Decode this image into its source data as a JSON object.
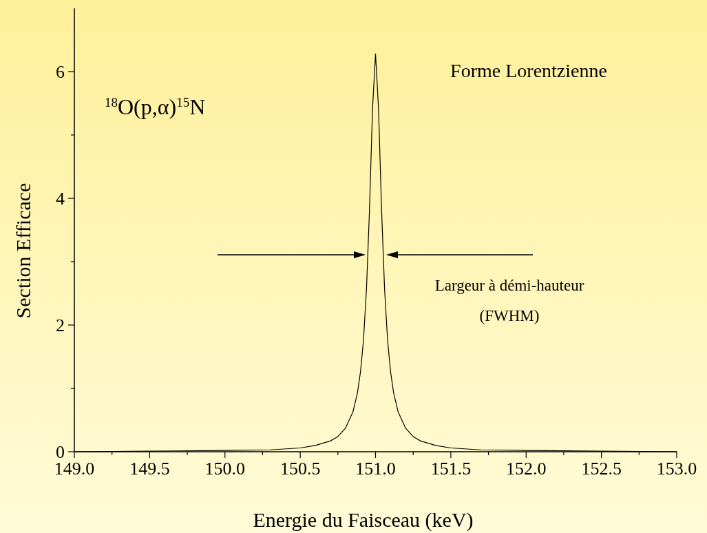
{
  "chart_data": {
    "type": "line",
    "xlabel": "Energie du Faisceau (keV)",
    "ylabel": "Section Efficace",
    "xlim": [
      149,
      153
    ],
    "ylim": [
      0,
      7
    ],
    "xticks": [
      {
        "value": 149,
        "label": "149.0"
      },
      {
        "value": 149.25,
        "label": null
      },
      {
        "value": 149.5,
        "label": "149.5"
      },
      {
        "value": 149.75,
        "label": null
      },
      {
        "value": 150,
        "label": "150.0"
      },
      {
        "value": 150.25,
        "label": null
      },
      {
        "value": 150.5,
        "label": "150.5"
      },
      {
        "value": 150.75,
        "label": null
      },
      {
        "value": 151,
        "label": "151.0"
      },
      {
        "value": 151.25,
        "label": null
      },
      {
        "value": 151.5,
        "label": "151.5"
      },
      {
        "value": 151.75,
        "label": null
      },
      {
        "value": 152,
        "label": "152.0"
      },
      {
        "value": 152.25,
        "label": null
      },
      {
        "value": 152.5,
        "label": "152.5"
      },
      {
        "value": 152.75,
        "label": null
      },
      {
        "value": 153,
        "label": "153.0"
      }
    ],
    "yticks": [
      0,
      {
        "value": 1,
        "label": null
      },
      2,
      {
        "value": 3,
        "label": null
      },
      4,
      {
        "value": 5,
        "label": null
      },
      6
    ],
    "grid": false,
    "marker": "none",
    "line_style": "solid",
    "annotations": [
      "Forme Lorentzienne",
      "$^{18}$O(p,α)$^{15}$N",
      "Largeur à démi-hauteur",
      "(FWHM)"
    ],
    "series": [
      {
        "color": "#000000",
        "x": [
          149,
          149.5,
          150,
          150.3,
          150.5,
          150.6,
          150.7,
          150.75,
          150.8,
          150.85,
          150.88,
          150.9,
          150.92,
          150.94,
          150.96,
          150.98,
          151,
          151.02,
          151.04,
          151.06,
          151.08,
          151.1,
          151.12,
          151.15,
          151.2,
          151.25,
          151.3,
          151.4,
          151.5,
          151.7,
          152,
          152.5,
          153
        ],
        "values": [
          0,
          0.01,
          0.02,
          0.03,
          0.06,
          0.1,
          0.17,
          0.24,
          0.37,
          0.63,
          0.93,
          1.26,
          1.76,
          2.57,
          3.83,
          5.41,
          6.28,
          5.41,
          3.83,
          2.57,
          1.76,
          1.26,
          0.93,
          0.63,
          0.37,
          0.24,
          0.17,
          0.1,
          0.06,
          0.03,
          0.02,
          0.01,
          0
        ]
      }
    ]
  }
}
